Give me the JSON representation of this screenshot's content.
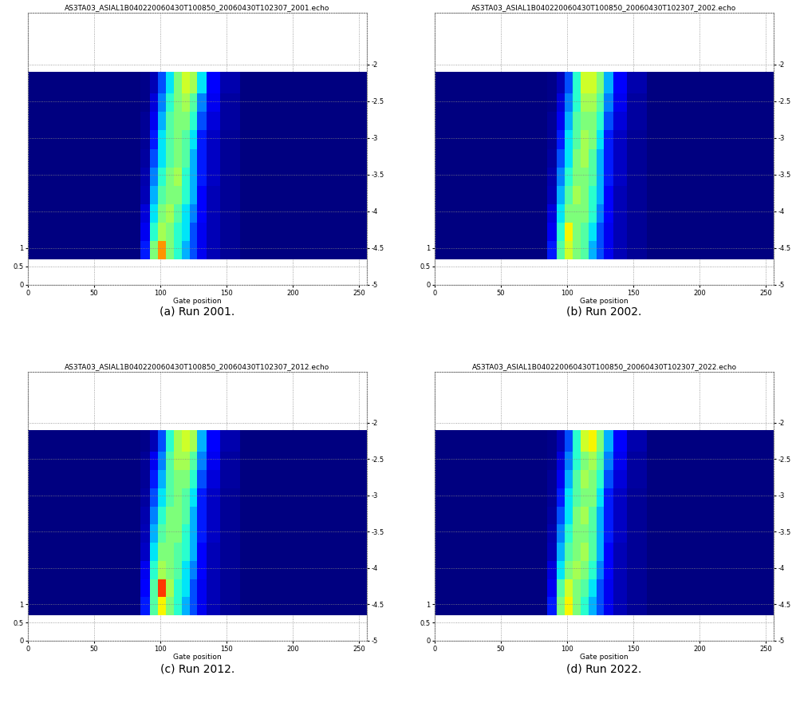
{
  "chart_data": [
    {
      "type": "heatmap",
      "title": "AS3TA03_ASIAL1B040220060430T100850_20060430T102307_2001.echo",
      "caption": "(a) Run 2001.",
      "x_label": "Gate position",
      "xlim": [
        0,
        256
      ],
      "xticks": [
        0,
        50,
        100,
        150,
        200,
        250
      ],
      "ylim": [
        0,
        7.4
      ],
      "yticks": [
        0,
        0.5,
        1
      ],
      "y2lim": [
        -5,
        -1.3
      ],
      "y2ticks": [
        -5,
        -4.5,
        -4,
        -3.5,
        -3,
        -2.5,
        -2
      ],
      "grid": true,
      "gate_edges": [
        0,
        85,
        92,
        98,
        104,
        110,
        116,
        122,
        128,
        135,
        145,
        160,
        256
      ],
      "y2_edges": [
        -4.65,
        -4.4,
        -4.15,
        -3.9,
        -3.65,
        -3.4,
        -3.15,
        -2.9,
        -2.65,
        -2.4,
        -2.1
      ],
      "color_range": [
        0,
        1
      ],
      "cells": [
        [
          0,
          0.15,
          0.5,
          0.75,
          0.5,
          0.4,
          0.3,
          0.2,
          0.1,
          0.05,
          0.02,
          0
        ],
        [
          0,
          0.1,
          0.4,
          0.55,
          0.5,
          0.4,
          0.35,
          0.2,
          0.1,
          0.05,
          0.02,
          0
        ],
        [
          0,
          0.08,
          0.35,
          0.5,
          0.55,
          0.45,
          0.35,
          0.25,
          0.12,
          0.05,
          0.02,
          0
        ],
        [
          0,
          0.05,
          0.3,
          0.45,
          0.5,
          0.5,
          0.4,
          0.3,
          0.12,
          0.05,
          0.02,
          0
        ],
        [
          0,
          0.04,
          0.25,
          0.4,
          0.5,
          0.55,
          0.4,
          0.3,
          0.15,
          0.06,
          0.02,
          0
        ],
        [
          0,
          0.03,
          0.2,
          0.35,
          0.45,
          0.5,
          0.45,
          0.3,
          0.15,
          0.06,
          0.02,
          0
        ],
        [
          0,
          0.02,
          0.15,
          0.35,
          0.45,
          0.5,
          0.45,
          0.35,
          0.15,
          0.06,
          0.02,
          0
        ],
        [
          0,
          0.02,
          0.1,
          0.3,
          0.45,
          0.5,
          0.5,
          0.4,
          0.2,
          0.08,
          0.03,
          0
        ],
        [
          0,
          0.01,
          0.08,
          0.25,
          0.4,
          0.5,
          0.55,
          0.45,
          0.25,
          0.1,
          0.03,
          0
        ],
        [
          0,
          0.01,
          0.05,
          0.2,
          0.35,
          0.5,
          0.6,
          0.55,
          0.35,
          0.12,
          0.04,
          0
        ]
      ]
    },
    {
      "type": "heatmap",
      "title": "AS3TA03_ASIAL1B040220060430T100850_20060430T102307_2002.echo",
      "caption": "(b) Run 2002.",
      "x_label": "Gate position",
      "xlim": [
        0,
        256
      ],
      "xticks": [
        0,
        50,
        100,
        150,
        200,
        250
      ],
      "ylim": [
        0,
        7.4
      ],
      "yticks": [
        0,
        0.5,
        1
      ],
      "y2lim": [
        -5,
        -1.3
      ],
      "y2ticks": [
        -5,
        -4.5,
        -4,
        -3.5,
        -3,
        -2.5,
        -2
      ],
      "grid": true,
      "gate_edges": [
        0,
        85,
        92,
        98,
        104,
        110,
        116,
        122,
        128,
        135,
        145,
        160,
        256
      ],
      "y2_edges": [
        -4.65,
        -4.4,
        -4.15,
        -3.9,
        -3.65,
        -3.4,
        -3.15,
        -2.9,
        -2.65,
        -2.4,
        -2.1
      ],
      "color_range": [
        0,
        1
      ],
      "cells": [
        [
          0,
          0.15,
          0.45,
          0.6,
          0.5,
          0.45,
          0.3,
          0.2,
          0.1,
          0.05,
          0.02,
          0
        ],
        [
          0,
          0.1,
          0.4,
          0.65,
          0.5,
          0.45,
          0.35,
          0.2,
          0.1,
          0.05,
          0.02,
          0
        ],
        [
          0,
          0.08,
          0.35,
          0.5,
          0.5,
          0.5,
          0.4,
          0.25,
          0.12,
          0.05,
          0.02,
          0
        ],
        [
          0,
          0.05,
          0.3,
          0.45,
          0.55,
          0.5,
          0.4,
          0.3,
          0.12,
          0.05,
          0.02,
          0
        ],
        [
          0,
          0.04,
          0.25,
          0.4,
          0.5,
          0.5,
          0.45,
          0.3,
          0.15,
          0.06,
          0.02,
          0
        ],
        [
          0,
          0.03,
          0.2,
          0.35,
          0.5,
          0.55,
          0.45,
          0.3,
          0.15,
          0.06,
          0.02,
          0
        ],
        [
          0,
          0.02,
          0.15,
          0.35,
          0.45,
          0.55,
          0.5,
          0.35,
          0.15,
          0.06,
          0.02,
          0
        ],
        [
          0,
          0.02,
          0.1,
          0.3,
          0.45,
          0.5,
          0.5,
          0.4,
          0.2,
          0.08,
          0.03,
          0
        ],
        [
          0,
          0.01,
          0.08,
          0.25,
          0.4,
          0.55,
          0.55,
          0.45,
          0.25,
          0.1,
          0.03,
          0
        ],
        [
          0,
          0.01,
          0.05,
          0.2,
          0.4,
          0.6,
          0.6,
          0.5,
          0.3,
          0.12,
          0.04,
          0
        ]
      ]
    },
    {
      "type": "heatmap",
      "title": "AS3TA03_ASIAL1B040220060430T100850_20060430T102307_2012.echo",
      "caption": "(c) Run 2012.",
      "x_label": "Gate position",
      "xlim": [
        0,
        256
      ],
      "xticks": [
        0,
        50,
        100,
        150,
        200,
        250
      ],
      "ylim": [
        0,
        7.4
      ],
      "yticks": [
        0,
        0.5,
        1
      ],
      "y2lim": [
        -5,
        -1.3
      ],
      "y2ticks": [
        -5,
        -4.5,
        -4,
        -3.5,
        -3,
        -2.5,
        -2
      ],
      "grid": true,
      "gate_edges": [
        0,
        85,
        92,
        98,
        104,
        110,
        116,
        122,
        128,
        135,
        145,
        160,
        256
      ],
      "y2_edges": [
        -4.65,
        -4.4,
        -4.15,
        -3.9,
        -3.65,
        -3.4,
        -3.15,
        -2.9,
        -2.65,
        -2.4,
        -2.1
      ],
      "color_range": [
        0,
        1
      ],
      "cells": [
        [
          0,
          0.15,
          0.45,
          0.65,
          0.5,
          0.4,
          0.3,
          0.2,
          0.1,
          0.05,
          0.02,
          0
        ],
        [
          0,
          0.12,
          0.45,
          0.85,
          0.55,
          0.4,
          0.35,
          0.2,
          0.1,
          0.05,
          0.02,
          0
        ],
        [
          0,
          0.1,
          0.4,
          0.55,
          0.5,
          0.45,
          0.35,
          0.25,
          0.12,
          0.05,
          0.02,
          0
        ],
        [
          0,
          0.06,
          0.35,
          0.5,
          0.5,
          0.45,
          0.4,
          0.3,
          0.12,
          0.05,
          0.02,
          0
        ],
        [
          0,
          0.05,
          0.3,
          0.45,
          0.5,
          0.5,
          0.4,
          0.3,
          0.15,
          0.06,
          0.02,
          0
        ],
        [
          0,
          0.04,
          0.25,
          0.4,
          0.5,
          0.5,
          0.45,
          0.3,
          0.15,
          0.06,
          0.02,
          0
        ],
        [
          0,
          0.03,
          0.2,
          0.35,
          0.45,
          0.5,
          0.45,
          0.35,
          0.15,
          0.06,
          0.02,
          0
        ],
        [
          0,
          0.02,
          0.15,
          0.3,
          0.45,
          0.5,
          0.5,
          0.4,
          0.2,
          0.08,
          0.03,
          0
        ],
        [
          0,
          0.02,
          0.1,
          0.25,
          0.45,
          0.55,
          0.55,
          0.45,
          0.25,
          0.1,
          0.03,
          0
        ],
        [
          0,
          0.01,
          0.05,
          0.2,
          0.4,
          0.55,
          0.6,
          0.55,
          0.3,
          0.12,
          0.04,
          0
        ]
      ]
    },
    {
      "type": "heatmap",
      "title": "AS3TA03_ASIAL1B040220060430T100850_20060430T102307_2022.echo",
      "caption": "(d) Run 2022.",
      "x_label": "Gate position",
      "xlim": [
        0,
        256
      ],
      "xticks": [
        0,
        50,
        100,
        150,
        200,
        250
      ],
      "ylim": [
        0,
        7.4
      ],
      "yticks": [
        0,
        0.5,
        1
      ],
      "y2lim": [
        -5,
        -1.3
      ],
      "y2ticks": [
        -5,
        -4.5,
        -4,
        -3.5,
        -3,
        -2.5,
        -2
      ],
      "grid": true,
      "gate_edges": [
        0,
        85,
        92,
        98,
        104,
        110,
        116,
        122,
        128,
        135,
        145,
        160,
        256
      ],
      "y2_edges": [
        -4.65,
        -4.4,
        -4.15,
        -3.9,
        -3.65,
        -3.4,
        -3.15,
        -2.9,
        -2.65,
        -2.4,
        -2.1
      ],
      "color_range": [
        0,
        1
      ],
      "cells": [
        [
          0,
          0.15,
          0.5,
          0.65,
          0.5,
          0.4,
          0.3,
          0.2,
          0.1,
          0.05,
          0.02,
          0
        ],
        [
          0,
          0.1,
          0.45,
          0.6,
          0.5,
          0.45,
          0.35,
          0.2,
          0.1,
          0.05,
          0.02,
          0
        ],
        [
          0,
          0.08,
          0.35,
          0.5,
          0.55,
          0.5,
          0.4,
          0.25,
          0.12,
          0.05,
          0.02,
          0
        ],
        [
          0,
          0.05,
          0.3,
          0.45,
          0.5,
          0.55,
          0.45,
          0.3,
          0.12,
          0.05,
          0.02,
          0
        ],
        [
          0,
          0.04,
          0.25,
          0.4,
          0.5,
          0.5,
          0.45,
          0.3,
          0.15,
          0.06,
          0.02,
          0
        ],
        [
          0,
          0.03,
          0.2,
          0.35,
          0.5,
          0.55,
          0.45,
          0.3,
          0.15,
          0.06,
          0.02,
          0
        ],
        [
          0,
          0.02,
          0.15,
          0.35,
          0.45,
          0.5,
          0.5,
          0.35,
          0.15,
          0.06,
          0.02,
          0
        ],
        [
          0,
          0.02,
          0.1,
          0.3,
          0.45,
          0.55,
          0.5,
          0.4,
          0.2,
          0.08,
          0.03,
          0
        ],
        [
          0,
          0.01,
          0.08,
          0.25,
          0.4,
          0.5,
          0.55,
          0.45,
          0.25,
          0.1,
          0.03,
          0
        ],
        [
          0,
          0.01,
          0.05,
          0.2,
          0.4,
          0.6,
          0.65,
          0.5,
          0.3,
          0.12,
          0.04,
          0
        ]
      ]
    }
  ]
}
